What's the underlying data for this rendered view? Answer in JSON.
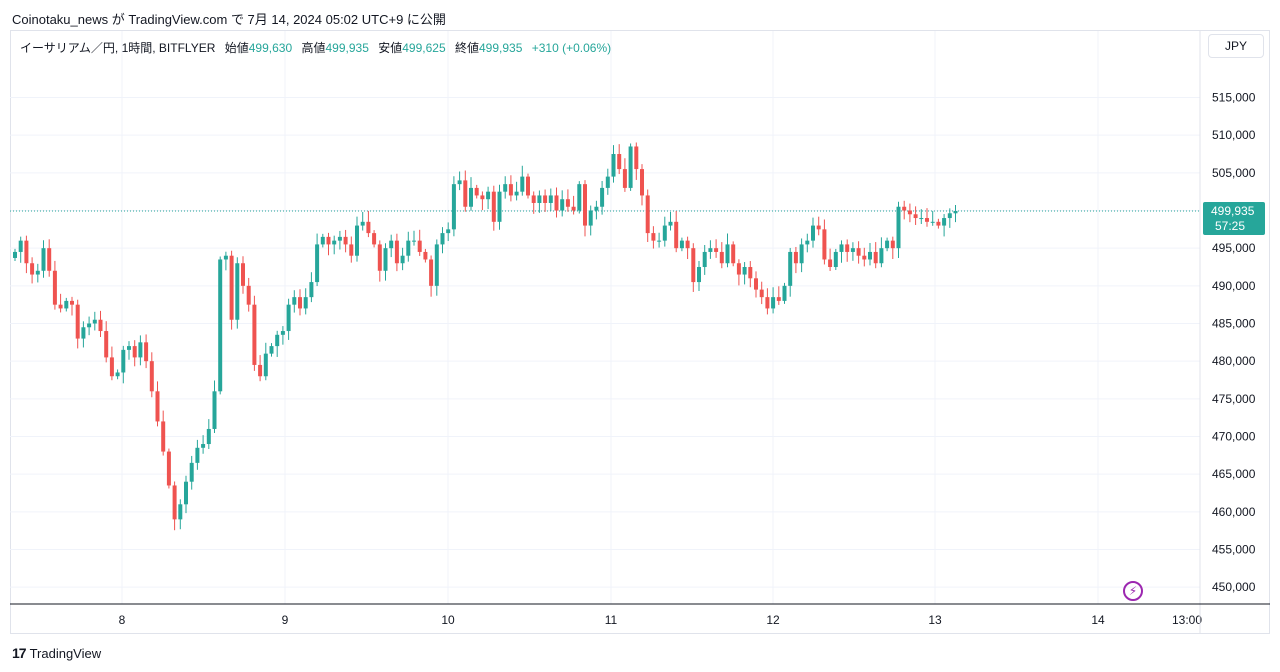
{
  "header": {
    "published_line": "Coinotaku_news が TradingView.com で 7月 14, 2024 05:02 UTC+9 に公開"
  },
  "legend": {
    "symbol": "イーサリアム／円, 1時間, BITFLYER",
    "open_label": "始値",
    "open": "499,630",
    "high_label": "高値",
    "high": "499,935",
    "low_label": "安値",
    "low": "499,625",
    "close_label": "終値",
    "close": "499,935",
    "change": "+310 (+0.06%)"
  },
  "currency_button": "JPY",
  "price_tag": {
    "price": "499,935",
    "countdown": "57:25"
  },
  "brand": {
    "logo": "17",
    "name": "TradingView"
  },
  "colors": {
    "up": "#26a69a",
    "down": "#ef5350",
    "grid": "#f0f3fa",
    "last_line": "#26a69a",
    "bolt": "#9c27b0"
  },
  "icons": {
    "bolt": "lightning-bolt-icon"
  },
  "chart_data": {
    "type": "candlestick",
    "interval": "1h",
    "y_ticks": [
      "450,000",
      "455,000",
      "460,000",
      "465,000",
      "470,000",
      "475,000",
      "480,000",
      "485,000",
      "490,000",
      "495,000",
      "500,000",
      "505,000",
      "510,000",
      "515,000"
    ],
    "x_ticks": [
      "8",
      "9",
      "10",
      "11",
      "12",
      "13",
      "14",
      "13:00"
    ],
    "last_price": 499935,
    "closes": [
      494500,
      496000,
      493000,
      491500,
      492000,
      495000,
      492000,
      487500,
      487000,
      488000,
      487500,
      483000,
      484500,
      485000,
      485500,
      484000,
      480500,
      478000,
      478500,
      481500,
      482000,
      480500,
      482500,
      480000,
      476000,
      472000,
      468000,
      463500,
      459000,
      461000,
      464000,
      466500,
      468500,
      469000,
      471000,
      476000,
      493500,
      494000,
      485500,
      493000,
      490000,
      487500,
      479500,
      478000,
      481000,
      482000,
      483500,
      484000,
      487500,
      488500,
      487000,
      488500,
      490500,
      495500,
      496500,
      495500,
      496000,
      496500,
      495500,
      494000,
      498000,
      498500,
      497000,
      495500,
      492000,
      495000,
      496000,
      493000,
      494000,
      496000,
      496000,
      494500,
      493500,
      490000,
      495500,
      497000,
      497500,
      503500,
      504000,
      500500,
      503000,
      502000,
      501500,
      502500,
      498500,
      502500,
      503500,
      502000,
      502500,
      504500,
      502000,
      501000,
      502000,
      501000,
      502000,
      500000,
      501500,
      500500,
      500000,
      503500,
      498000,
      500000,
      500500,
      503000,
      504500,
      507500,
      505500,
      503000,
      508500,
      505500,
      502000,
      497000,
      496000,
      496000,
      498000,
      498500,
      495000,
      496000,
      495000,
      490500,
      492500,
      494500,
      495000,
      494500,
      493000,
      495500,
      493000,
      491500,
      492500,
      491000,
      489500,
      488500,
      487000,
      488500,
      488000,
      490000,
      494500,
      493000,
      495500,
      496000,
      498000,
      497500,
      493500,
      492500,
      494500,
      495500,
      494500,
      495000,
      494000,
      493500,
      494500,
      493000,
      495000,
      496000,
      495000,
      500500,
      500000,
      499500,
      499000,
      499000,
      498500,
      498500,
      498000,
      499000,
      499630,
      499935
    ]
  }
}
